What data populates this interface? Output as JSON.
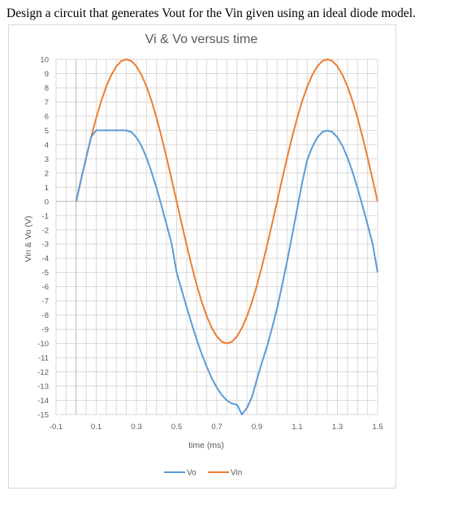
{
  "question": "Design a circuit that generates Vout for the Vin given using an ideal diode model.",
  "chart_data": {
    "type": "line",
    "title": "Vi & Vo versus time",
    "xlabel": "time (ms)",
    "ylabel": "Vin & Vo (V)",
    "xlim": [
      -0.1,
      1.5
    ],
    "ylim": [
      -15,
      10
    ],
    "xticks": [
      "-0.1",
      "0.1",
      "0.3",
      "0.5",
      "0.7",
      "0.9",
      "1.1",
      "1.3",
      "1.5"
    ],
    "yticks": [
      "10",
      "9",
      "8",
      "7",
      "6",
      "5",
      "4",
      "3",
      "2",
      "1",
      "0",
      "-1",
      "-2",
      "-3",
      "-4",
      "-5",
      "-6",
      "-7",
      "-8",
      "-9",
      "-10",
      "-11",
      "-12",
      "-13",
      "-14",
      "-15"
    ],
    "grid": true,
    "legend_position": "bottom",
    "series": [
      {
        "name": "Vo",
        "color": "#5b9bd5",
        "x": [
          0,
          0.025,
          0.05,
          0.075,
          0.1,
          0.125,
          0.15,
          0.175,
          0.2,
          0.225,
          0.25,
          0.275,
          0.3,
          0.325,
          0.35,
          0.375,
          0.4,
          0.425,
          0.45,
          0.475,
          0.5,
          0.525,
          0.55,
          0.575,
          0.6,
          0.625,
          0.65,
          0.675,
          0.7,
          0.725,
          0.75,
          0.775,
          0.8,
          0.825,
          0.85,
          0.875,
          0.9,
          0.925,
          0.95,
          0.975,
          1.0,
          1.025,
          1.05,
          1.075,
          1.1,
          1.125,
          1.15,
          1.175,
          1.2,
          1.225,
          1.25,
          1.275,
          1.3,
          1.325,
          1.35,
          1.375,
          1.4,
          1.425,
          1.45,
          1.475,
          1.5
        ],
        "y": [
          0,
          1.56,
          3.09,
          4.54,
          5,
          5,
          5,
          5,
          5,
          5,
          5,
          4.88,
          4.51,
          3.91,
          3.09,
          2.07,
          0.93,
          -0.31,
          -1.62,
          -2.97,
          -5,
          -6.23,
          -7.45,
          -8.62,
          -9.72,
          -10.73,
          -11.64,
          -12.44,
          -13.11,
          -13.63,
          -14.01,
          -14.23,
          -14.3,
          -15,
          -14.53,
          -13.77,
          -12.5,
          -11.31,
          -10.2,
          -8.91,
          -7.5,
          -5.92,
          -4.2,
          -2.38,
          -0.5,
          1.35,
          2.94,
          3.84,
          4.5,
          4.88,
          5,
          4.88,
          4.51,
          3.91,
          3.09,
          2.07,
          0.93,
          -0.31,
          -1.62,
          -2.97,
          -5
        ]
      },
      {
        "name": "Vin",
        "color": "#ed7d31",
        "x": [
          0,
          0.025,
          0.05,
          0.075,
          0.1,
          0.125,
          0.15,
          0.175,
          0.2,
          0.225,
          0.25,
          0.275,
          0.3,
          0.325,
          0.35,
          0.375,
          0.4,
          0.425,
          0.45,
          0.475,
          0.5,
          0.525,
          0.55,
          0.575,
          0.6,
          0.625,
          0.65,
          0.675,
          0.7,
          0.725,
          0.75,
          0.775,
          0.8,
          0.825,
          0.85,
          0.875,
          0.9,
          0.925,
          0.95,
          0.975,
          1.0,
          1.025,
          1.05,
          1.075,
          1.1,
          1.125,
          1.15,
          1.175,
          1.2,
          1.225,
          1.25,
          1.275,
          1.3,
          1.325,
          1.35,
          1.375,
          1.4,
          1.425,
          1.45,
          1.475,
          1.5
        ],
        "y": [
          0,
          1.56,
          3.09,
          4.54,
          5.88,
          7.07,
          8.09,
          8.91,
          9.51,
          9.88,
          10,
          9.88,
          9.51,
          8.91,
          8.09,
          7.07,
          5.88,
          4.54,
          3.09,
          1.56,
          0,
          -1.56,
          -3.09,
          -4.54,
          -5.88,
          -7.07,
          -8.09,
          -8.91,
          -9.51,
          -9.88,
          -10,
          -9.88,
          -9.51,
          -8.91,
          -8.09,
          -7.07,
          -5.88,
          -4.54,
          -3.09,
          -1.56,
          0,
          1.56,
          3.09,
          4.54,
          5.88,
          7.07,
          8.09,
          8.91,
          9.51,
          9.88,
          10,
          9.88,
          9.51,
          8.91,
          8.09,
          7.07,
          5.88,
          4.54,
          3.09,
          1.56,
          0
        ]
      }
    ]
  }
}
